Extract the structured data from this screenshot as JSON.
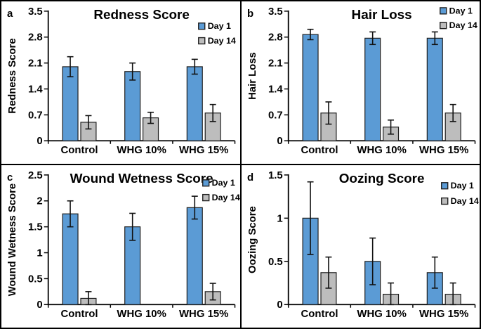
{
  "figure": {
    "description": "Four-panel grouped bar chart figure comparing wound scores on Day 1 vs Day 14 for Control, WHG 10% and WHG 15% groups",
    "background": "#ffffff",
    "border_color": "#000000"
  },
  "colors": {
    "day1": "#5B9BD5",
    "day14": "#BDBDBD",
    "bar_outline": "#1f1f1f",
    "axis": "#000000",
    "error_bar": "#111111",
    "text": "#000000"
  },
  "legend_labels": [
    "Day 1",
    "Day 14"
  ],
  "chart_data": [
    {
      "type": "bar",
      "panel_label": "a",
      "title": "Redness Score",
      "ylabel": "Redness Score",
      "xlabel": "",
      "categories": [
        "Control",
        "WHG 10%",
        "WHG 15%"
      ],
      "ylim": [
        0,
        3.5
      ],
      "yticks": [
        0,
        0.7,
        1.4,
        2.1,
        2.8,
        3.5
      ],
      "ytick_labels": [
        "0",
        "0.7",
        "1.4",
        "2.1",
        "2.8",
        "3.5"
      ],
      "grid": false,
      "legend_position": "inside-top-right",
      "series": [
        {
          "name": "Day 1",
          "color_key": "day1",
          "values": [
            2.0,
            1.87,
            2.0
          ],
          "errors": [
            0.27,
            0.23,
            0.2
          ]
        },
        {
          "name": "Day 14",
          "color_key": "day14",
          "values": [
            0.5,
            0.62,
            0.75
          ],
          "errors": [
            0.18,
            0.15,
            0.23
          ]
        }
      ]
    },
    {
      "type": "bar",
      "panel_label": "b",
      "title": "Hair Loss",
      "ylabel": "Hair Loss",
      "xlabel": "",
      "categories": [
        "Control",
        "WHG 10%",
        "WHG 15%"
      ],
      "ylim": [
        0,
        3.5
      ],
      "yticks": [
        0,
        0.7,
        1.4,
        2.1,
        2.8,
        3.5
      ],
      "ytick_labels": [
        "0",
        "0.7",
        "1.4",
        "2.1",
        "2.8",
        "3.5"
      ],
      "grid": false,
      "legend_position": "inside-top-right",
      "series": [
        {
          "name": "Day 1",
          "color_key": "day1",
          "values": [
            2.87,
            2.77,
            2.77
          ],
          "errors": [
            0.14,
            0.17,
            0.17
          ]
        },
        {
          "name": "Day 14",
          "color_key": "day14",
          "values": [
            0.75,
            0.37,
            0.75
          ],
          "errors": [
            0.3,
            0.19,
            0.23
          ]
        }
      ]
    },
    {
      "type": "bar",
      "panel_label": "c",
      "title": "Wound Wetness Score",
      "ylabel": "Wound Wetness Score",
      "xlabel": "",
      "categories": [
        "Control",
        "WHG 10%",
        "WHG 15%"
      ],
      "ylim": [
        0,
        2.5
      ],
      "yticks": [
        0,
        0.5,
        1,
        1.5,
        2,
        2.5
      ],
      "ytick_labels": [
        "0",
        "0.5",
        "1",
        "1.5",
        "2",
        "2.5"
      ],
      "grid": false,
      "legend_position": "inside-top-right",
      "series": [
        {
          "name": "Day 1",
          "color_key": "day1",
          "values": [
            1.75,
            1.5,
            1.87
          ],
          "errors": [
            0.25,
            0.26,
            0.22
          ]
        },
        {
          "name": "Day 14",
          "color_key": "day14",
          "values": [
            0.12,
            0,
            0.25
          ],
          "errors": [
            0.13,
            0,
            0.16
          ]
        }
      ]
    },
    {
      "type": "bar",
      "panel_label": "d",
      "title": "Oozing Score",
      "ylabel": "Oozing Score",
      "xlabel": "",
      "categories": [
        "Control",
        "WHG 10%",
        "WHG 15%"
      ],
      "ylim": [
        0,
        1.5
      ],
      "yticks": [
        0,
        0.5,
        1,
        1.5
      ],
      "ytick_labels": [
        "0",
        "0.5",
        "1",
        "1.5"
      ],
      "grid": false,
      "legend_position": "inside-top-right",
      "series": [
        {
          "name": "Day 1",
          "color_key": "day1",
          "values": [
            1.0,
            0.5,
            0.37
          ],
          "errors": [
            0.42,
            0.27,
            0.18
          ]
        },
        {
          "name": "Day 14",
          "color_key": "day14",
          "values": [
            0.37,
            0.12,
            0.12
          ],
          "errors": [
            0.18,
            0.13,
            0.13
          ]
        }
      ]
    }
  ]
}
